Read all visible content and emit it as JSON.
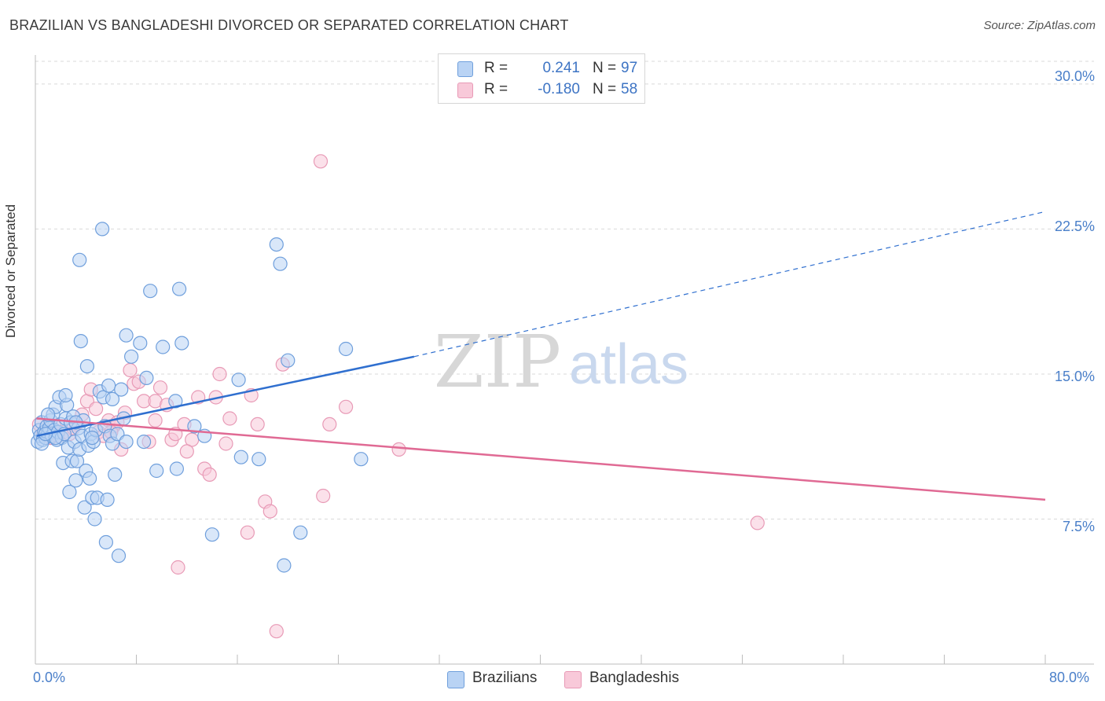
{
  "header": {
    "title": "BRAZILIAN VS BANGLADESHI DIVORCED OR SEPARATED CORRELATION CHART",
    "source": "Source: ZipAtlas.com"
  },
  "watermark": {
    "zip": "ZIP",
    "atlas": "atlas"
  },
  "stats": {
    "rows": [
      {
        "r_label": "R =",
        "r_value": "0.241",
        "n_label": "N =",
        "n_value": "97"
      },
      {
        "r_label": "R =",
        "r_value": "-0.180",
        "n_label": "N =",
        "n_value": "58"
      }
    ]
  },
  "legend": {
    "items": [
      "Brazilians",
      "Bangladeshis"
    ]
  },
  "colors": {
    "brazilians_fill": "#b9d3f4",
    "brazilians_stroke": "#6f9fdc",
    "brazilians_line": "#2f6fcf",
    "bangladeshis_fill": "#f8c9d9",
    "bangladeshis_stroke": "#e89ab6",
    "bangladeshis_line": "#e06a94",
    "tick_label": "#4a7fc9",
    "grid": "#d9d9d9"
  },
  "chart_data": {
    "type": "scatter",
    "title": "BRAZILIAN VS BANGLADESHI DIVORCED OR SEPARATED CORRELATION CHART",
    "xlabel": "",
    "ylabel": "Divorced or Separated",
    "xlim": [
      0,
      80
    ],
    "ylim": [
      0,
      31.5
    ],
    "x_tick_labels": [
      "0.0%",
      "80.0%"
    ],
    "y_ticks": [
      7.5,
      15.0,
      22.5,
      30.0
    ],
    "y_tick_labels": [
      "7.5%",
      "15.0%",
      "22.5%",
      "30.0%"
    ],
    "grid": "horizontal dashed",
    "legend_position": "bottom-center",
    "series": [
      {
        "name": "Brazilians",
        "r": 0.241,
        "n": 97,
        "trend_solid": {
          "x": [
            0.1,
            30.0
          ],
          "y": [
            11.8,
            15.9
          ]
        },
        "trend_dashed": {
          "x": [
            30.0,
            80.0
          ],
          "y": [
            15.9,
            23.4
          ]
        },
        "points": [
          [
            0.2,
            11.5
          ],
          [
            0.3,
            12.1
          ],
          [
            0.4,
            11.8
          ],
          [
            0.5,
            12.5
          ],
          [
            0.6,
            11.6
          ],
          [
            0.7,
            12.0
          ],
          [
            0.8,
            11.7
          ],
          [
            0.9,
            12.3
          ],
          [
            1.0,
            11.9
          ],
          [
            1.1,
            12.2
          ],
          [
            1.2,
            12.6
          ],
          [
            1.3,
            11.8
          ],
          [
            1.4,
            12.9
          ],
          [
            1.5,
            12.1
          ],
          [
            1.6,
            13.3
          ],
          [
            1.7,
            11.6
          ],
          [
            1.8,
            12.0
          ],
          [
            1.9,
            13.8
          ],
          [
            2.0,
            12.4
          ],
          [
            2.1,
            11.7
          ],
          [
            2.2,
            10.4
          ],
          [
            2.3,
            11.9
          ],
          [
            2.4,
            12.7
          ],
          [
            2.5,
            13.4
          ],
          [
            2.6,
            11.2
          ],
          [
            2.7,
            8.9
          ],
          [
            2.8,
            12.5
          ],
          [
            2.9,
            10.5
          ],
          [
            3.0,
            12.8
          ],
          [
            3.1,
            11.5
          ],
          [
            3.2,
            9.5
          ],
          [
            3.3,
            10.5
          ],
          [
            3.4,
            12.2
          ],
          [
            3.5,
            11.1
          ],
          [
            3.6,
            16.7
          ],
          [
            3.7,
            11.8
          ],
          [
            3.8,
            12.6
          ],
          [
            3.9,
            8.1
          ],
          [
            4.0,
            10.0
          ],
          [
            4.1,
            15.4
          ],
          [
            4.2,
            11.3
          ],
          [
            4.3,
            9.6
          ],
          [
            4.4,
            11.9
          ],
          [
            4.5,
            8.6
          ],
          [
            4.6,
            11.5
          ],
          [
            4.7,
            7.5
          ],
          [
            4.8,
            12.1
          ],
          [
            4.9,
            8.6
          ],
          [
            5.1,
            14.1
          ],
          [
            5.4,
            13.8
          ],
          [
            5.5,
            12.3
          ],
          [
            5.6,
            6.3
          ],
          [
            5.7,
            8.5
          ],
          [
            5.8,
            14.4
          ],
          [
            5.9,
            11.8
          ],
          [
            6.1,
            11.4
          ],
          [
            6.3,
            9.8
          ],
          [
            6.5,
            11.9
          ],
          [
            6.6,
            5.6
          ],
          [
            6.8,
            14.2
          ],
          [
            7.0,
            12.7
          ],
          [
            7.2,
            11.5
          ],
          [
            7.6,
            15.9
          ],
          [
            8.3,
            16.6
          ],
          [
            8.6,
            11.5
          ],
          [
            8.8,
            14.8
          ],
          [
            9.1,
            19.3
          ],
          [
            9.6,
            10.0
          ],
          [
            10.1,
            16.4
          ],
          [
            11.1,
            13.6
          ],
          [
            11.2,
            10.1
          ],
          [
            11.4,
            19.4
          ],
          [
            11.6,
            16.6
          ],
          [
            12.6,
            12.3
          ],
          [
            13.4,
            11.8
          ],
          [
            14.0,
            6.7
          ],
          [
            16.1,
            14.7
          ],
          [
            16.3,
            10.7
          ],
          [
            17.7,
            10.6
          ],
          [
            19.1,
            21.7
          ],
          [
            19.4,
            20.7
          ],
          [
            19.7,
            5.1
          ],
          [
            20.0,
            15.7
          ],
          [
            21.0,
            6.8
          ],
          [
            24.6,
            16.3
          ],
          [
            25.8,
            10.6
          ],
          [
            3.5,
            20.9
          ],
          [
            5.3,
            22.5
          ],
          [
            7.2,
            17.0
          ],
          [
            0.5,
            11.4
          ],
          [
            1.0,
            12.9
          ],
          [
            1.6,
            11.7
          ],
          [
            2.4,
            13.9
          ],
          [
            0.8,
            11.9
          ],
          [
            3.2,
            12.5
          ],
          [
            6.1,
            13.7
          ],
          [
            4.5,
            11.7
          ]
        ]
      },
      {
        "name": "Bangladeshis",
        "r": -0.18,
        "n": 58,
        "trend_solid": {
          "x": [
            0.1,
            80.0
          ],
          "y": [
            12.7,
            8.5
          ]
        },
        "points": [
          [
            0.3,
            12.4
          ],
          [
            0.6,
            11.9
          ],
          [
            0.9,
            12.1
          ],
          [
            1.2,
            11.7
          ],
          [
            1.5,
            12.3
          ],
          [
            1.8,
            11.8
          ],
          [
            2.2,
            12.0
          ],
          [
            2.7,
            11.9
          ],
          [
            3.2,
            12.4
          ],
          [
            3.7,
            12.9
          ],
          [
            4.1,
            13.6
          ],
          [
            4.4,
            14.2
          ],
          [
            4.8,
            13.2
          ],
          [
            5.0,
            12.0
          ],
          [
            5.4,
            11.8
          ],
          [
            5.8,
            12.6
          ],
          [
            6.2,
            12.3
          ],
          [
            6.5,
            12.5
          ],
          [
            6.8,
            11.1
          ],
          [
            7.1,
            13.0
          ],
          [
            7.5,
            15.2
          ],
          [
            7.8,
            14.5
          ],
          [
            8.2,
            14.6
          ],
          [
            8.6,
            13.6
          ],
          [
            9.0,
            11.5
          ],
          [
            9.5,
            13.6
          ],
          [
            9.9,
            14.3
          ],
          [
            10.4,
            13.4
          ],
          [
            10.8,
            11.6
          ],
          [
            11.1,
            11.9
          ],
          [
            11.3,
            5.0
          ],
          [
            11.8,
            12.4
          ],
          [
            12.4,
            11.6
          ],
          [
            12.9,
            13.8
          ],
          [
            13.4,
            10.1
          ],
          [
            13.8,
            9.8
          ],
          [
            14.3,
            13.8
          ],
          [
            14.6,
            15.0
          ],
          [
            15.1,
            11.4
          ],
          [
            15.4,
            12.7
          ],
          [
            17.1,
            13.9
          ],
          [
            17.6,
            12.4
          ],
          [
            18.2,
            8.4
          ],
          [
            18.6,
            7.9
          ],
          [
            19.1,
            1.7
          ],
          [
            19.6,
            15.5
          ],
          [
            22.6,
            26.0
          ],
          [
            22.8,
            8.7
          ],
          [
            23.3,
            12.4
          ],
          [
            24.6,
            13.3
          ],
          [
            28.8,
            11.1
          ],
          [
            57.2,
            7.3
          ],
          [
            16.8,
            6.8
          ],
          [
            12.0,
            11.0
          ],
          [
            6.0,
            12.0
          ],
          [
            9.5,
            12.6
          ],
          [
            3.0,
            12.2
          ],
          [
            1.5,
            12.0
          ]
        ]
      }
    ]
  }
}
